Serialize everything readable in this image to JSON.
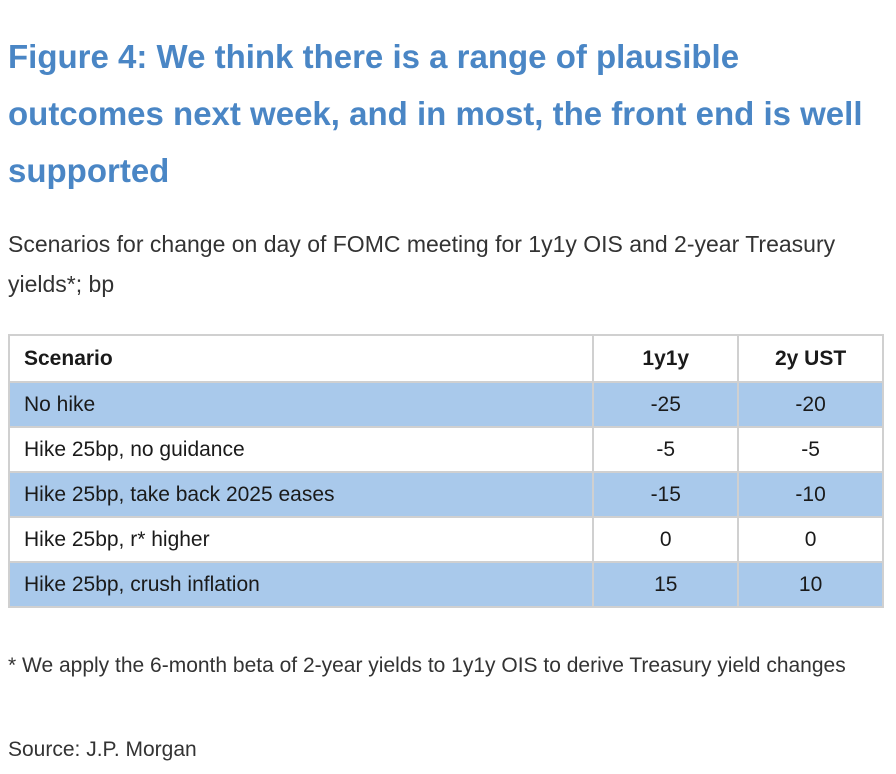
{
  "title": "Figure 4: We think there is a range of plausible outcomes next week, and in most, the front end is well supported",
  "subtitle": "Scenarios for change on day of FOMC meeting for 1y1y OIS and 2-year Treasury yields*; bp",
  "chart_data": {
    "type": "table",
    "columns": [
      "Scenario",
      "1y1y",
      "2y UST"
    ],
    "rows": [
      {
        "scenario": "No hike",
        "y1y1": "-25",
        "ust2y": "-20"
      },
      {
        "scenario": "Hike 25bp, no guidance",
        "y1y1": "-5",
        "ust2y": "-5"
      },
      {
        "scenario": "Hike 25bp, take back 2025 eases",
        "y1y1": "-15",
        "ust2y": "-10"
      },
      {
        "scenario": "Hike 25bp, r* higher",
        "y1y1": "0",
        "ust2y": "0"
      },
      {
        "scenario": "Hike 25bp, crush inflation",
        "y1y1": "15",
        "ust2y": "10"
      }
    ],
    "row_shading_color": "#a9c9eb"
  },
  "footnote": "* We apply the 6-month beta of 2-year yields to 1y1y OIS to derive Treasury yield changes",
  "source": "Source: J.P. Morgan",
  "colors": {
    "title": "#4a86c5"
  }
}
